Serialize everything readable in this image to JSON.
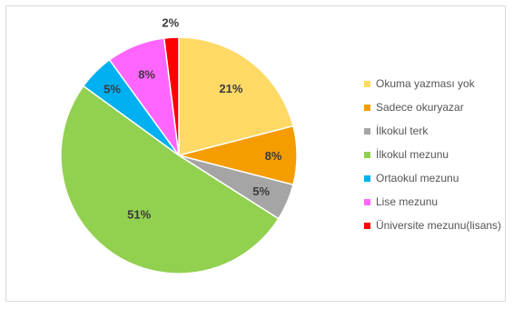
{
  "chart_data": {
    "type": "pie",
    "categories": [
      "Okuma yazması yok",
      "Sadece okuryazar",
      "İlkokul terk",
      "İlkokul mezunu",
      "Ortaokul mezunu",
      "Lise mezunu",
      "Üniversite mezunu(lisans)"
    ],
    "values": [
      21,
      8,
      5,
      51,
      5,
      8,
      2
    ],
    "data_labels": [
      "21%",
      "8%",
      "5%",
      "51%",
      "5%",
      "8%",
      "2%"
    ],
    "colors": [
      "#FFD966",
      "#F59C00",
      "#A5A5A5",
      "#92D050",
      "#00B0F0",
      "#FF66FF",
      "#FF0000"
    ],
    "legend_position": "right",
    "start": "12 o'clock, clockwise"
  }
}
